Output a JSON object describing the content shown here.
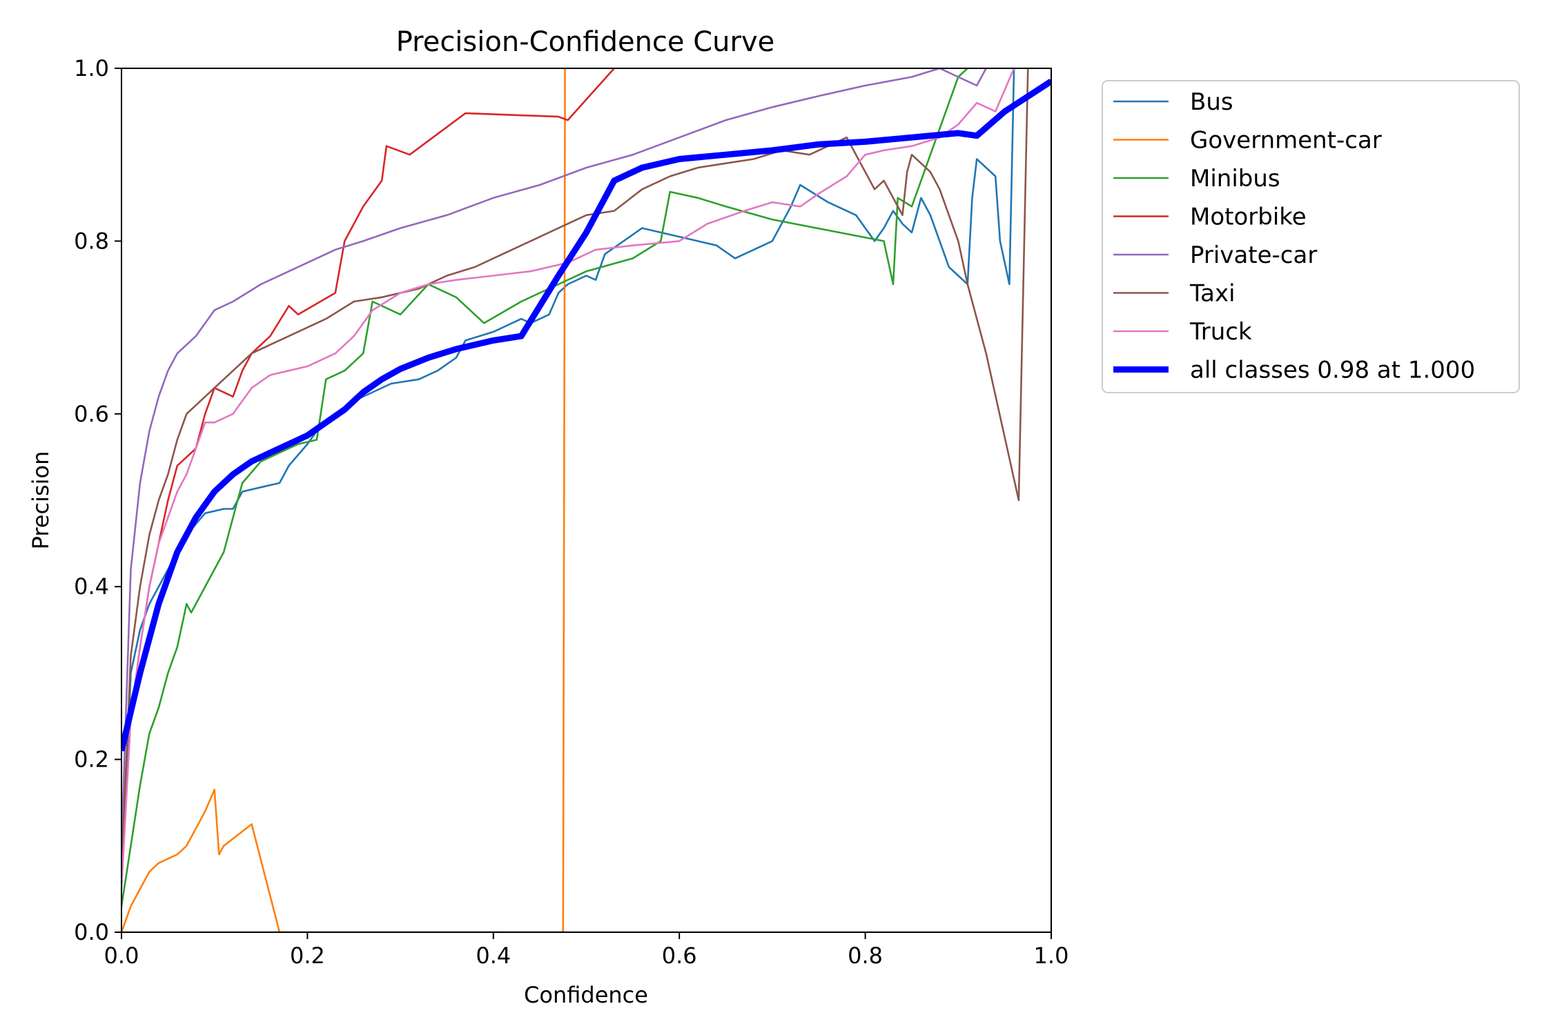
{
  "chart_data": {
    "type": "line",
    "title": "Precision-Confidence Curve",
    "xlabel": "Confidence",
    "ylabel": "Precision",
    "xlim": [
      0.0,
      1.0
    ],
    "ylim": [
      0.0,
      1.0
    ],
    "x_ticks": [
      "0.0",
      "0.2",
      "0.4",
      "0.6",
      "0.8",
      "1.0"
    ],
    "y_ticks": [
      "0.0",
      "0.2",
      "0.4",
      "0.6",
      "0.8",
      "1.0"
    ],
    "legend_position": "outside-right-top",
    "series": [
      {
        "name": "Bus",
        "color": "#1f77b4",
        "points": [
          [
            0.0,
            0.05
          ],
          [
            0.01,
            0.3
          ],
          [
            0.02,
            0.35
          ],
          [
            0.03,
            0.38
          ],
          [
            0.04,
            0.4
          ],
          [
            0.05,
            0.42
          ],
          [
            0.06,
            0.44
          ],
          [
            0.07,
            0.46
          ],
          [
            0.09,
            0.485
          ],
          [
            0.11,
            0.49
          ],
          [
            0.12,
            0.49
          ],
          [
            0.13,
            0.51
          ],
          [
            0.15,
            0.515
          ],
          [
            0.17,
            0.52
          ],
          [
            0.18,
            0.54
          ],
          [
            0.2,
            0.565
          ],
          [
            0.21,
            0.58
          ],
          [
            0.23,
            0.6
          ],
          [
            0.25,
            0.615
          ],
          [
            0.27,
            0.625
          ],
          [
            0.29,
            0.635
          ],
          [
            0.32,
            0.64
          ],
          [
            0.34,
            0.65
          ],
          [
            0.36,
            0.665
          ],
          [
            0.37,
            0.685
          ],
          [
            0.4,
            0.695
          ],
          [
            0.43,
            0.71
          ],
          [
            0.44,
            0.705
          ],
          [
            0.46,
            0.715
          ],
          [
            0.47,
            0.74
          ],
          [
            0.48,
            0.75
          ],
          [
            0.5,
            0.76
          ],
          [
            0.51,
            0.755
          ],
          [
            0.52,
            0.785
          ],
          [
            0.54,
            0.8
          ],
          [
            0.56,
            0.815
          ],
          [
            0.6,
            0.805
          ],
          [
            0.62,
            0.8
          ],
          [
            0.64,
            0.795
          ],
          [
            0.66,
            0.78
          ],
          [
            0.7,
            0.8
          ],
          [
            0.72,
            0.84
          ],
          [
            0.73,
            0.865
          ],
          [
            0.76,
            0.845
          ],
          [
            0.79,
            0.83
          ],
          [
            0.81,
            0.8
          ],
          [
            0.82,
            0.815
          ],
          [
            0.83,
            0.835
          ],
          [
            0.84,
            0.82
          ],
          [
            0.85,
            0.81
          ],
          [
            0.86,
            0.85
          ],
          [
            0.87,
            0.83
          ],
          [
            0.88,
            0.8
          ],
          [
            0.89,
            0.77
          ],
          [
            0.9,
            0.76
          ],
          [
            0.91,
            0.75
          ],
          [
            0.915,
            0.85
          ],
          [
            0.92,
            0.895
          ],
          [
            0.93,
            0.885
          ],
          [
            0.94,
            0.875
          ],
          [
            0.945,
            0.8
          ],
          [
            0.955,
            0.75
          ],
          [
            0.96,
            1.0
          ]
        ]
      },
      {
        "name": "Government-car",
        "color": "#ff7f0e",
        "points": [
          [
            0.0,
            0.0
          ],
          [
            0.01,
            0.03
          ],
          [
            0.02,
            0.05
          ],
          [
            0.03,
            0.07
          ],
          [
            0.04,
            0.08
          ],
          [
            0.05,
            0.085
          ],
          [
            0.06,
            0.09
          ],
          [
            0.07,
            0.1
          ],
          [
            0.08,
            0.12
          ],
          [
            0.09,
            0.14
          ],
          [
            0.1,
            0.165
          ],
          [
            0.105,
            0.09
          ],
          [
            0.11,
            0.1
          ],
          [
            0.14,
            0.125
          ],
          [
            0.17,
            0.0
          ],
          [
            0.475,
            0.0
          ],
          [
            0.477,
            0.94
          ],
          [
            0.477,
            1.0
          ]
        ]
      },
      {
        "name": "Minibus",
        "color": "#2ca02c",
        "points": [
          [
            0.0,
            0.03
          ],
          [
            0.01,
            0.1
          ],
          [
            0.02,
            0.17
          ],
          [
            0.03,
            0.23
          ],
          [
            0.04,
            0.26
          ],
          [
            0.05,
            0.3
          ],
          [
            0.06,
            0.33
          ],
          [
            0.07,
            0.38
          ],
          [
            0.075,
            0.37
          ],
          [
            0.08,
            0.38
          ],
          [
            0.09,
            0.4
          ],
          [
            0.1,
            0.42
          ],
          [
            0.11,
            0.44
          ],
          [
            0.12,
            0.48
          ],
          [
            0.13,
            0.52
          ],
          [
            0.15,
            0.545
          ],
          [
            0.17,
            0.555
          ],
          [
            0.19,
            0.565
          ],
          [
            0.21,
            0.57
          ],
          [
            0.22,
            0.64
          ],
          [
            0.24,
            0.65
          ],
          [
            0.26,
            0.67
          ],
          [
            0.27,
            0.73
          ],
          [
            0.3,
            0.715
          ],
          [
            0.33,
            0.75
          ],
          [
            0.36,
            0.735
          ],
          [
            0.39,
            0.705
          ],
          [
            0.43,
            0.73
          ],
          [
            0.45,
            0.74
          ],
          [
            0.5,
            0.765
          ],
          [
            0.55,
            0.78
          ],
          [
            0.58,
            0.8
          ],
          [
            0.59,
            0.857
          ],
          [
            0.62,
            0.85
          ],
          [
            0.65,
            0.84
          ],
          [
            0.7,
            0.825
          ],
          [
            0.82,
            0.8
          ],
          [
            0.83,
            0.75
          ],
          [
            0.835,
            0.85
          ],
          [
            0.85,
            0.84
          ],
          [
            0.87,
            0.9
          ],
          [
            0.9,
            0.99
          ],
          [
            0.91,
            1.0
          ]
        ]
      },
      {
        "name": "Motorbike",
        "color": "#d62728",
        "points": [
          [
            0.0,
            0.06
          ],
          [
            0.01,
            0.25
          ],
          [
            0.02,
            0.33
          ],
          [
            0.03,
            0.4
          ],
          [
            0.04,
            0.45
          ],
          [
            0.05,
            0.5
          ],
          [
            0.06,
            0.54
          ],
          [
            0.07,
            0.55
          ],
          [
            0.08,
            0.56
          ],
          [
            0.09,
            0.6
          ],
          [
            0.1,
            0.63
          ],
          [
            0.12,
            0.62
          ],
          [
            0.13,
            0.65
          ],
          [
            0.14,
            0.67
          ],
          [
            0.16,
            0.69
          ],
          [
            0.18,
            0.725
          ],
          [
            0.19,
            0.715
          ],
          [
            0.23,
            0.74
          ],
          [
            0.24,
            0.8
          ],
          [
            0.26,
            0.84
          ],
          [
            0.28,
            0.87
          ],
          [
            0.285,
            0.91
          ],
          [
            0.31,
            0.9
          ],
          [
            0.37,
            0.948
          ],
          [
            0.47,
            0.944
          ],
          [
            0.48,
            0.94
          ],
          [
            0.53,
            1.0
          ]
        ]
      },
      {
        "name": "Private-car",
        "color": "#9467bd",
        "points": [
          [
            0.0,
            0.1
          ],
          [
            0.01,
            0.42
          ],
          [
            0.02,
            0.52
          ],
          [
            0.03,
            0.58
          ],
          [
            0.04,
            0.62
          ],
          [
            0.05,
            0.65
          ],
          [
            0.06,
            0.67
          ],
          [
            0.08,
            0.69
          ],
          [
            0.1,
            0.72
          ],
          [
            0.12,
            0.73
          ],
          [
            0.15,
            0.75
          ],
          [
            0.18,
            0.765
          ],
          [
            0.2,
            0.775
          ],
          [
            0.23,
            0.79
          ],
          [
            0.26,
            0.8
          ],
          [
            0.3,
            0.815
          ],
          [
            0.35,
            0.83
          ],
          [
            0.4,
            0.85
          ],
          [
            0.45,
            0.865
          ],
          [
            0.5,
            0.885
          ],
          [
            0.55,
            0.9
          ],
          [
            0.6,
            0.92
          ],
          [
            0.65,
            0.94
          ],
          [
            0.7,
            0.955
          ],
          [
            0.75,
            0.968
          ],
          [
            0.8,
            0.98
          ],
          [
            0.85,
            0.99
          ],
          [
            0.88,
            1.0
          ],
          [
            0.9,
            0.99
          ],
          [
            0.92,
            0.98
          ],
          [
            0.93,
            1.0
          ]
        ]
      },
      {
        "name": "Taxi",
        "color": "#8c564b",
        "points": [
          [
            0.0,
            0.07
          ],
          [
            0.01,
            0.32
          ],
          [
            0.02,
            0.4
          ],
          [
            0.03,
            0.46
          ],
          [
            0.04,
            0.5
          ],
          [
            0.05,
            0.53
          ],
          [
            0.06,
            0.57
          ],
          [
            0.07,
            0.6
          ],
          [
            0.08,
            0.61
          ],
          [
            0.1,
            0.63
          ],
          [
            0.12,
            0.65
          ],
          [
            0.14,
            0.67
          ],
          [
            0.16,
            0.68
          ],
          [
            0.18,
            0.69
          ],
          [
            0.2,
            0.7
          ],
          [
            0.22,
            0.71
          ],
          [
            0.25,
            0.73
          ],
          [
            0.28,
            0.735
          ],
          [
            0.32,
            0.745
          ],
          [
            0.35,
            0.76
          ],
          [
            0.38,
            0.77
          ],
          [
            0.41,
            0.785
          ],
          [
            0.44,
            0.8
          ],
          [
            0.47,
            0.815
          ],
          [
            0.5,
            0.83
          ],
          [
            0.53,
            0.835
          ],
          [
            0.56,
            0.86
          ],
          [
            0.59,
            0.875
          ],
          [
            0.62,
            0.885
          ],
          [
            0.65,
            0.89
          ],
          [
            0.68,
            0.895
          ],
          [
            0.71,
            0.905
          ],
          [
            0.74,
            0.9
          ],
          [
            0.77,
            0.915
          ],
          [
            0.78,
            0.92
          ],
          [
            0.8,
            0.88
          ],
          [
            0.81,
            0.86
          ],
          [
            0.82,
            0.87
          ],
          [
            0.83,
            0.85
          ],
          [
            0.84,
            0.83
          ],
          [
            0.845,
            0.88
          ],
          [
            0.85,
            0.9
          ],
          [
            0.86,
            0.89
          ],
          [
            0.87,
            0.88
          ],
          [
            0.88,
            0.86
          ],
          [
            0.9,
            0.8
          ],
          [
            0.91,
            0.75
          ],
          [
            0.93,
            0.67
          ],
          [
            0.965,
            0.5
          ],
          [
            0.975,
            1.0
          ]
        ]
      },
      {
        "name": "Truck",
        "color": "#e377c2",
        "points": [
          [
            0.0,
            0.05
          ],
          [
            0.01,
            0.25
          ],
          [
            0.02,
            0.33
          ],
          [
            0.03,
            0.4
          ],
          [
            0.04,
            0.45
          ],
          [
            0.05,
            0.48
          ],
          [
            0.06,
            0.51
          ],
          [
            0.07,
            0.53
          ],
          [
            0.08,
            0.56
          ],
          [
            0.09,
            0.59
          ],
          [
            0.1,
            0.59
          ],
          [
            0.12,
            0.6
          ],
          [
            0.14,
            0.63
          ],
          [
            0.16,
            0.645
          ],
          [
            0.18,
            0.65
          ],
          [
            0.2,
            0.655
          ],
          [
            0.23,
            0.67
          ],
          [
            0.25,
            0.69
          ],
          [
            0.27,
            0.72
          ],
          [
            0.3,
            0.74
          ],
          [
            0.33,
            0.75
          ],
          [
            0.36,
            0.755
          ],
          [
            0.4,
            0.76
          ],
          [
            0.44,
            0.765
          ],
          [
            0.48,
            0.775
          ],
          [
            0.51,
            0.79
          ],
          [
            0.55,
            0.795
          ],
          [
            0.6,
            0.8
          ],
          [
            0.63,
            0.82
          ],
          [
            0.67,
            0.835
          ],
          [
            0.7,
            0.845
          ],
          [
            0.73,
            0.84
          ],
          [
            0.75,
            0.855
          ],
          [
            0.78,
            0.875
          ],
          [
            0.8,
            0.9
          ],
          [
            0.82,
            0.905
          ],
          [
            0.85,
            0.91
          ],
          [
            0.88,
            0.92
          ],
          [
            0.9,
            0.935
          ],
          [
            0.92,
            0.96
          ],
          [
            0.94,
            0.95
          ],
          [
            0.96,
            1.0
          ]
        ]
      },
      {
        "name": "all classes 0.98 at 1.000",
        "color": "#0000ff",
        "thick": true,
        "points": [
          [
            0.0,
            0.21
          ],
          [
            0.02,
            0.3
          ],
          [
            0.04,
            0.38
          ],
          [
            0.06,
            0.44
          ],
          [
            0.08,
            0.48
          ],
          [
            0.1,
            0.51
          ],
          [
            0.12,
            0.53
          ],
          [
            0.14,
            0.545
          ],
          [
            0.16,
            0.555
          ],
          [
            0.18,
            0.565
          ],
          [
            0.2,
            0.575
          ],
          [
            0.22,
            0.59
          ],
          [
            0.24,
            0.605
          ],
          [
            0.26,
            0.625
          ],
          [
            0.28,
            0.64
          ],
          [
            0.3,
            0.652
          ],
          [
            0.33,
            0.665
          ],
          [
            0.36,
            0.675
          ],
          [
            0.4,
            0.685
          ],
          [
            0.43,
            0.69
          ],
          [
            0.47,
            0.76
          ],
          [
            0.5,
            0.81
          ],
          [
            0.53,
            0.87
          ],
          [
            0.56,
            0.885
          ],
          [
            0.6,
            0.895
          ],
          [
            0.65,
            0.9
          ],
          [
            0.7,
            0.905
          ],
          [
            0.75,
            0.912
          ],
          [
            0.8,
            0.915
          ],
          [
            0.85,
            0.92
          ],
          [
            0.9,
            0.925
          ],
          [
            0.92,
            0.922
          ],
          [
            0.95,
            0.95
          ],
          [
            1.0,
            0.985
          ]
        ]
      }
    ]
  }
}
